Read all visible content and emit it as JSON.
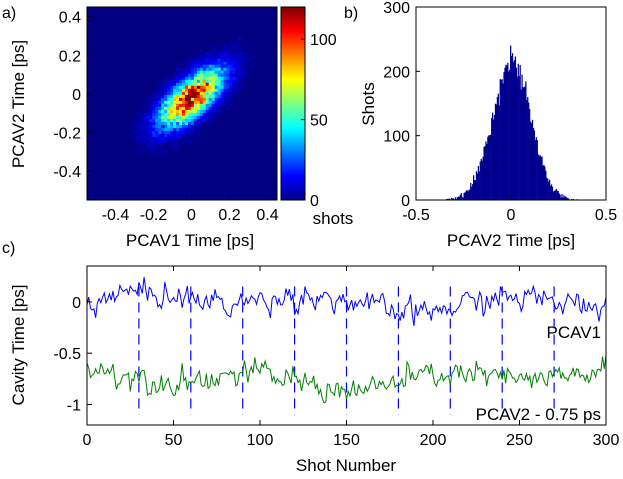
{
  "colors": {
    "histogram": "#00008f",
    "pcav1": "#0000ff",
    "pcav2": "#008000",
    "dashed": "#0000ff",
    "colormap": [
      "#00008f",
      "#0000ff",
      "#0080ff",
      "#00ffff",
      "#80ff80",
      "#ffff00",
      "#ff8000",
      "#ff0000",
      "#800000"
    ]
  },
  "chart_data": [
    {
      "type": "heatmap",
      "panel_label": "a)",
      "xlabel": "PCAV1 Time [ps]",
      "ylabel": "PCAV2 Time [ps]",
      "xlim": [
        -0.55,
        0.45
      ],
      "ylim": [
        -0.55,
        0.45
      ],
      "xticks": [
        -0.4,
        -0.2,
        0,
        0.2,
        0.4
      ],
      "xtick_labels": [
        "-0.4",
        "-0.2",
        "0",
        "0.2",
        "0.4"
      ],
      "yticks": [
        0.4,
        0.2,
        0,
        -0.2,
        -0.4
      ],
      "ytick_labels": [
        "0.4",
        "0.2",
        "0",
        "-0.2",
        "-0.4"
      ],
      "distribution": {
        "mean_x": 0.0,
        "mean_y": -0.02,
        "sd_x": 0.11,
        "sd_y": 0.1,
        "correlation": 0.7
      },
      "colorbar": {
        "range": [
          0,
          120
        ],
        "ticks": [
          0,
          50,
          100
        ],
        "tick_labels": [
          "0",
          "50",
          "100"
        ],
        "label": "shots"
      }
    },
    {
      "type": "bar",
      "panel_label": "b)",
      "xlabel": "PCAV2 Time [ps]",
      "ylabel": "Shots",
      "xlim": [
        -0.5,
        0.5
      ],
      "ylim": [
        0,
        300
      ],
      "xticks": [
        -0.5,
        0,
        0.5
      ],
      "xtick_labels": [
        "-0.5",
        "0",
        "0.5"
      ],
      "yticks": [
        0,
        100,
        200,
        300
      ],
      "ytick_labels": [
        "0",
        "100",
        "200",
        "300"
      ],
      "distribution": {
        "peak": 215,
        "center": 0.0,
        "sd": 0.1,
        "bin_width": 0.005
      }
    },
    {
      "type": "line",
      "panel_label": "c)",
      "xlabel": "Shot Number",
      "ylabel": "Cavity Time [ps]",
      "xlim": [
        0,
        300
      ],
      "ylim": [
        -1.2,
        0.35
      ],
      "xticks": [
        0,
        50,
        100,
        150,
        200,
        250,
        300
      ],
      "xtick_labels": [
        "0",
        "50",
        "100",
        "150",
        "200",
        "250",
        "300"
      ],
      "yticks": [
        0,
        -0.5,
        -1
      ],
      "ytick_labels": [
        "0",
        "-0.5",
        "-1"
      ],
      "dashed_x": [
        30,
        60,
        90,
        120,
        150,
        180,
        210,
        240,
        270
      ],
      "series": [
        {
          "name": "PCAV1",
          "mean": 0.0,
          "noise_sd": 0.1
        },
        {
          "name": "PCAV2 - 0.75 ps",
          "mean": -0.75,
          "noise_sd": 0.1
        }
      ]
    }
  ]
}
